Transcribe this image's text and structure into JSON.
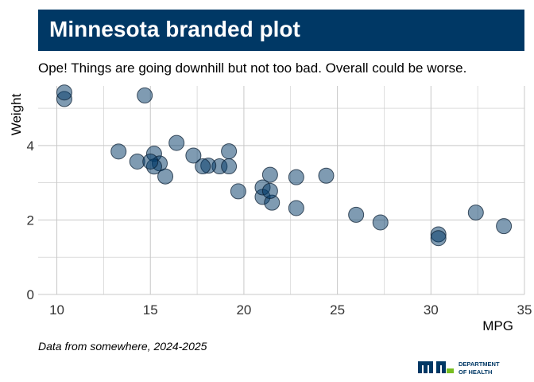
{
  "title": "Minnesota branded plot",
  "subtitle": "Ope! Things are going downhill but not too bad. Overall could be worse.",
  "caption": "Data from somewhere, 2024-2025",
  "logo": {
    "line1": "DEPARTMENT",
    "line2": "OF HEALTH",
    "icon": "mn-state-logo-icon"
  },
  "colors": {
    "title_bg": "#003865",
    "point_fill": "#003865",
    "grid": "#c8c8c8",
    "logo_green": "#78BE21"
  },
  "chart_data": {
    "type": "scatter",
    "xlabel": "MPG",
    "ylabel": "Weight",
    "xlim": [
      9,
      35
    ],
    "ylim": [
      0,
      5.6
    ],
    "x_ticks": [
      10,
      15,
      20,
      25,
      30,
      35
    ],
    "y_ticks": [
      0,
      2,
      4
    ],
    "grid": true,
    "points": [
      {
        "x": 21.0,
        "y": 2.62
      },
      {
        "x": 21.0,
        "y": 2.875
      },
      {
        "x": 22.8,
        "y": 2.32
      },
      {
        "x": 21.4,
        "y": 3.215
      },
      {
        "x": 18.7,
        "y": 3.44
      },
      {
        "x": 18.1,
        "y": 3.46
      },
      {
        "x": 14.3,
        "y": 3.57
      },
      {
        "x": 24.4,
        "y": 3.19
      },
      {
        "x": 22.8,
        "y": 3.15
      },
      {
        "x": 19.2,
        "y": 3.44
      },
      {
        "x": 17.8,
        "y": 3.44
      },
      {
        "x": 16.4,
        "y": 4.07
      },
      {
        "x": 17.3,
        "y": 3.73
      },
      {
        "x": 15.2,
        "y": 3.78
      },
      {
        "x": 10.4,
        "y": 5.25
      },
      {
        "x": 10.4,
        "y": 5.424
      },
      {
        "x": 14.7,
        "y": 5.345
      },
      {
        "x": 32.4,
        "y": 2.2
      },
      {
        "x": 30.4,
        "y": 1.615
      },
      {
        "x": 33.9,
        "y": 1.835
      },
      {
        "x": 21.5,
        "y": 2.465
      },
      {
        "x": 15.5,
        "y": 3.52
      },
      {
        "x": 15.2,
        "y": 3.435
      },
      {
        "x": 13.3,
        "y": 3.84
      },
      {
        "x": 19.2,
        "y": 3.845
      },
      {
        "x": 27.3,
        "y": 1.935
      },
      {
        "x": 26.0,
        "y": 2.14
      },
      {
        "x": 30.4,
        "y": 1.513
      },
      {
        "x": 15.8,
        "y": 3.17
      },
      {
        "x": 19.7,
        "y": 2.77
      },
      {
        "x": 15.0,
        "y": 3.57
      },
      {
        "x": 21.4,
        "y": 2.78
      }
    ]
  }
}
